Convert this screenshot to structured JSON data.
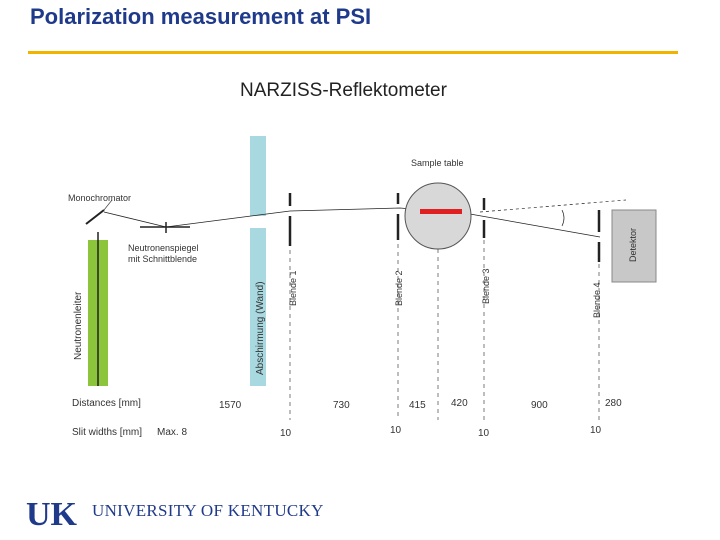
{
  "slide": {
    "title": "Polarization measurement at PSI"
  },
  "diagram": {
    "title": "NARZISS-Reflektometer",
    "labels": {
      "sample_table": "Sample table",
      "monochromator": "Monochromator",
      "neutronenspiegel_1": "Neutronenspiegel",
      "neutronenspiegel_2": "mit Schnittblende",
      "neutronenleiter": "Neutronenleiter",
      "abschirmung": "Abschirmung (Wand)",
      "blende1": "Blende 1",
      "blende2": "Blende 2",
      "blende3": "Blende 3",
      "blende4": "Blende 4",
      "detektor": "Detektor"
    },
    "distances_label": "Distances [mm]",
    "distances": [
      "1570",
      "730",
      "415",
      "420",
      "900",
      "280"
    ],
    "slit_label": "Slit widths [mm]",
    "slit_widths": [
      "Max. 8",
      "10",
      "10",
      "10",
      "10"
    ],
    "colors": {
      "guide": "#8cc43c",
      "shield": "#a8d8e0",
      "sample": "#e02020",
      "detector": "#c8c8c8"
    }
  },
  "footer": {
    "university": "UNIVERSITY OF KENTUCKY",
    "logo_text": "UK"
  }
}
